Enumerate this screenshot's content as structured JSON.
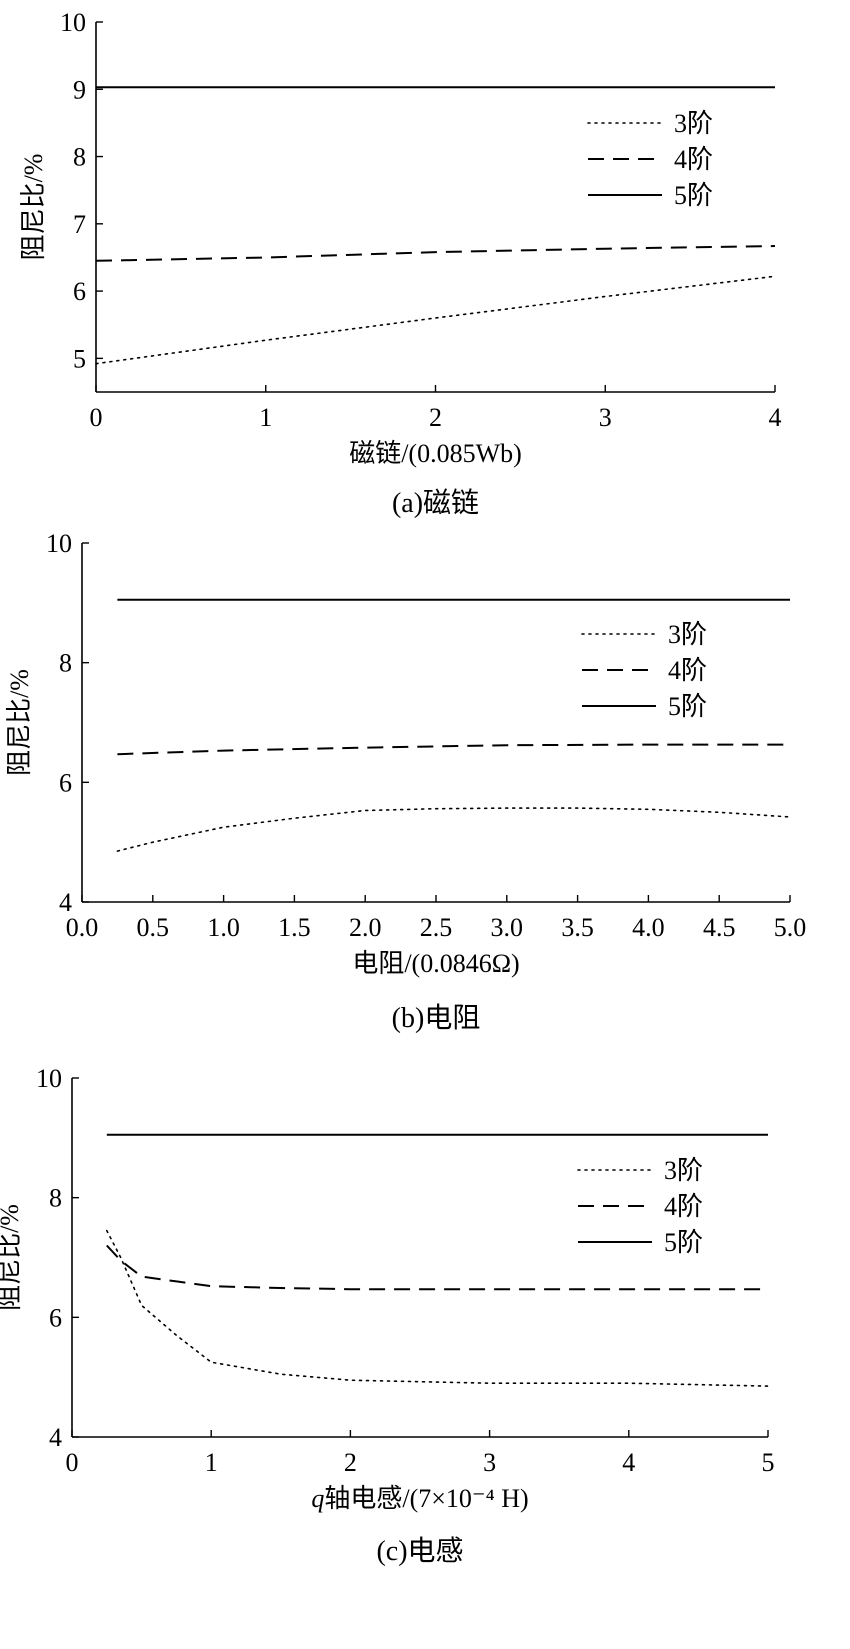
{
  "figure": {
    "colors": {
      "line": "#000000",
      "background": "#ffffff"
    }
  },
  "chart_data": [
    {
      "type": "line",
      "caption": "(a)磁链",
      "xlabel": "磁链/(0.085Wb)",
      "ylabel": "阻尼比/%",
      "xlim": [
        0,
        4
      ],
      "ylim": [
        4.5,
        10
      ],
      "xticks": [
        0,
        1,
        2,
        3,
        4
      ],
      "xtick_labels": [
        "0",
        "1",
        "2",
        "3",
        "4"
      ],
      "yticks": [
        5,
        6,
        7,
        8,
        9,
        10
      ],
      "ytick_labels": [
        "5",
        "6",
        "7",
        "8",
        "9",
        "10"
      ],
      "grid": false,
      "legend_position": "top-right",
      "series": [
        {
          "name": "3阶",
          "style": "dotted",
          "x": [
            0,
            1,
            2,
            3,
            4
          ],
          "y": [
            4.92,
            5.27,
            5.6,
            5.92,
            6.22
          ]
        },
        {
          "name": "4阶",
          "style": "dashed",
          "x": [
            0,
            1,
            2,
            3,
            4
          ],
          "y": [
            6.45,
            6.5,
            6.58,
            6.63,
            6.67
          ]
        },
        {
          "name": "5阶",
          "style": "solid",
          "x": [
            0,
            1,
            2,
            3,
            4
          ],
          "y": [
            9.03,
            9.03,
            9.03,
            9.03,
            9.03
          ]
        }
      ]
    },
    {
      "type": "line",
      "caption": "(b)电阻",
      "xlabel": "电阻/(0.0846Ω)",
      "ylabel": "阻尼比/%",
      "xlim": [
        0,
        5
      ],
      "ylim": [
        4,
        10
      ],
      "xticks": [
        0,
        0.5,
        1,
        1.5,
        2,
        2.5,
        3,
        3.5,
        4,
        4.5,
        5
      ],
      "xtick_labels": [
        "0.0",
        "0.5",
        "1.0",
        "1.5",
        "2.0",
        "2.5",
        "3.0",
        "3.5",
        "4.0",
        "4.5",
        "5.0"
      ],
      "yticks": [
        4,
        6,
        8,
        10
      ],
      "ytick_labels": [
        "4",
        "6",
        "8",
        "10"
      ],
      "grid": false,
      "legend_position": "top-right",
      "series": [
        {
          "name": "3阶",
          "style": "dotted",
          "x": [
            0.25,
            0.5,
            1,
            1.5,
            2,
            2.5,
            3,
            3.5,
            4,
            4.5,
            5
          ],
          "y": [
            4.85,
            5.0,
            5.25,
            5.4,
            5.53,
            5.56,
            5.57,
            5.57,
            5.55,
            5.5,
            5.42
          ]
        },
        {
          "name": "4阶",
          "style": "dashed",
          "x": [
            0.25,
            1,
            2,
            3,
            4,
            5
          ],
          "y": [
            6.47,
            6.53,
            6.58,
            6.62,
            6.63,
            6.63
          ]
        },
        {
          "name": "5阶",
          "style": "solid",
          "x": [
            0.25,
            5
          ],
          "y": [
            9.05,
            9.05
          ]
        }
      ]
    },
    {
      "type": "line",
      "caption": "(c)电感",
      "xlabel_prefix": "q",
      "xlabel": "轴电感/(7×10⁻⁴ H)",
      "ylabel": "阻尼比/%",
      "xlim": [
        0,
        5
      ],
      "ylim": [
        4,
        10
      ],
      "xticks": [
        0,
        1,
        2,
        3,
        4,
        5
      ],
      "xtick_labels": [
        "0",
        "1",
        "2",
        "3",
        "4",
        "5"
      ],
      "yticks": [
        4,
        6,
        8,
        10
      ],
      "ytick_labels": [
        "4",
        "6",
        "8",
        "10"
      ],
      "grid": false,
      "legend_position": "top-right",
      "series": [
        {
          "name": "3阶",
          "style": "dotted",
          "x": [
            0.25,
            0.35,
            0.5,
            0.75,
            1,
            1.5,
            2,
            3,
            4,
            5
          ],
          "y": [
            7.45,
            7.0,
            6.2,
            5.7,
            5.25,
            5.05,
            4.95,
            4.9,
            4.9,
            4.85
          ]
        },
        {
          "name": "4阶",
          "style": "dashed",
          "x": [
            0.25,
            0.35,
            0.5,
            0.75,
            1,
            1.5,
            2,
            3,
            4,
            5
          ],
          "y": [
            7.2,
            6.95,
            6.68,
            6.6,
            6.52,
            6.49,
            6.47,
            6.47,
            6.47,
            6.47
          ]
        },
        {
          "name": "5阶",
          "style": "solid",
          "x": [
            0.25,
            5
          ],
          "y": [
            9.05,
            9.05
          ]
        }
      ]
    }
  ]
}
